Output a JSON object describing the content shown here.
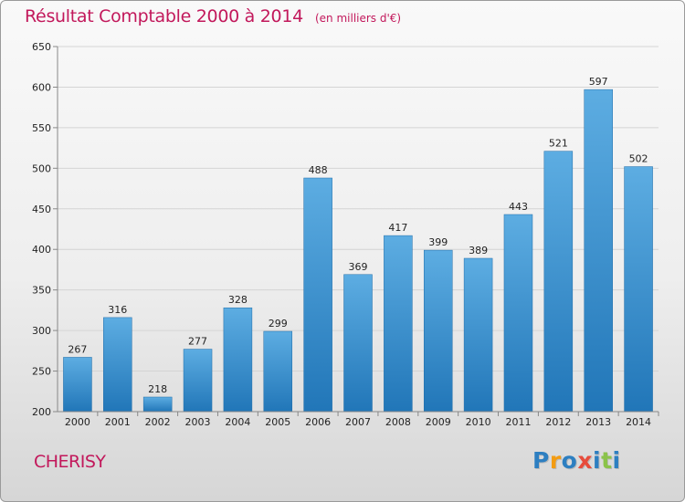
{
  "chart_data": {
    "type": "bar",
    "title": "Résultat Comptable 2000 à 2014",
    "subtitle": "(en milliers d'€)",
    "categories": [
      "2000",
      "2001",
      "2002",
      "2003",
      "2004",
      "2005",
      "2006",
      "2007",
      "2008",
      "2009",
      "2010",
      "2011",
      "2012",
      "2013",
      "2014"
    ],
    "values": [
      267,
      316,
      218,
      277,
      328,
      299,
      488,
      369,
      417,
      399,
      389,
      443,
      521,
      597,
      502
    ],
    "ylim": [
      200,
      650
    ],
    "yticks": [
      200,
      250,
      300,
      350,
      400,
      450,
      500,
      550,
      600,
      650
    ],
    "grid": true,
    "xlabel": "",
    "ylabel": ""
  },
  "commune": "CHERISY",
  "logo": {
    "letters": [
      "P",
      "r",
      "o",
      "x",
      "i",
      "t",
      "i"
    ],
    "colors": [
      "#2d7fc1",
      "#f39c12",
      "#2d7fc1",
      "#e74c3c",
      "#2d7fc1",
      "#8bc34a",
      "#2d7fc1"
    ]
  },
  "colors": {
    "bar_top": "#5dade2",
    "bar_bottom": "#2176b8",
    "title": "#c2185b"
  }
}
